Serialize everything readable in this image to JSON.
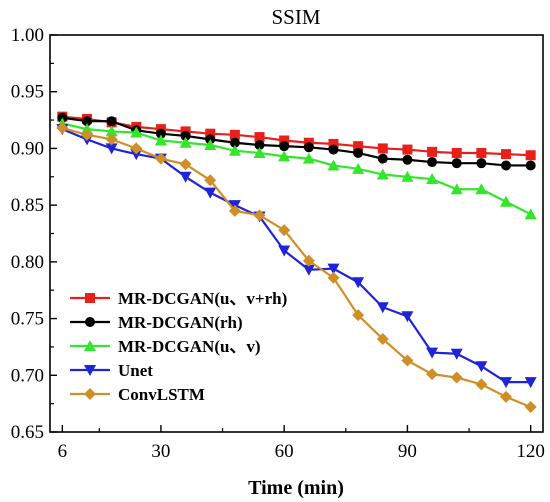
{
  "chart_data": {
    "type": "line",
    "title": "SSIM",
    "xlabel": "Time (min)",
    "ylabel": "",
    "xlim": [
      3,
      123
    ],
    "ylim": [
      0.65,
      1.0
    ],
    "xticks": [
      6,
      30,
      60,
      90,
      120
    ],
    "xtick_labels": [
      "6",
      "30",
      "60",
      "90",
      "120"
    ],
    "yticks": [
      0.65,
      0.7,
      0.75,
      0.8,
      0.85,
      0.9,
      0.95,
      1.0
    ],
    "ytick_labels": [
      "0.65",
      "0.70",
      "0.75",
      "0.80",
      "0.85",
      "0.90",
      "0.95",
      "1.00"
    ],
    "grid": false,
    "legend_position": "bottom-left",
    "x": [
      6,
      12,
      18,
      24,
      30,
      36,
      42,
      48,
      54,
      60,
      66,
      72,
      78,
      84,
      90,
      96,
      102,
      108,
      114,
      120
    ],
    "series": [
      {
        "name": "MR-DCGAN(u、v+rh)",
        "color": "#e8201a",
        "marker": "square",
        "values": [
          0.928,
          0.926,
          0.923,
          0.919,
          0.917,
          0.915,
          0.913,
          0.912,
          0.91,
          0.907,
          0.905,
          0.904,
          0.902,
          0.9,
          0.899,
          0.897,
          0.896,
          0.896,
          0.895,
          0.894
        ]
      },
      {
        "name": "MR-DCGAN(rh)",
        "color": "#000000",
        "marker": "circle",
        "values": [
          0.927,
          0.924,
          0.924,
          0.916,
          0.913,
          0.911,
          0.908,
          0.905,
          0.903,
          0.902,
          0.901,
          0.899,
          0.896,
          0.891,
          0.89,
          0.888,
          0.887,
          0.887,
          0.885,
          0.885
        ]
      },
      {
        "name": "MR-DCGAN(u、v)",
        "color": "#33e62b",
        "marker": "triangle-up",
        "values": [
          0.922,
          0.917,
          0.915,
          0.914,
          0.907,
          0.905,
          0.903,
          0.898,
          0.896,
          0.893,
          0.891,
          0.885,
          0.882,
          0.877,
          0.875,
          0.873,
          0.864,
          0.864,
          0.853,
          0.842
        ]
      },
      {
        "name": "Unet",
        "color": "#1f24d8",
        "marker": "triangle-down",
        "values": [
          0.917,
          0.908,
          0.9,
          0.895,
          0.891,
          0.875,
          0.861,
          0.85,
          0.84,
          0.81,
          0.793,
          0.794,
          0.782,
          0.76,
          0.752,
          0.72,
          0.719,
          0.708,
          0.694,
          0.694
        ]
      },
      {
        "name": "ConvLSTM",
        "color": "#cf8f26",
        "marker": "diamond",
        "values": [
          0.918,
          0.912,
          0.908,
          0.9,
          0.891,
          0.886,
          0.872,
          0.845,
          0.841,
          0.828,
          0.801,
          0.786,
          0.753,
          0.732,
          0.713,
          0.701,
          0.698,
          0.692,
          0.681,
          0.672
        ]
      }
    ]
  }
}
